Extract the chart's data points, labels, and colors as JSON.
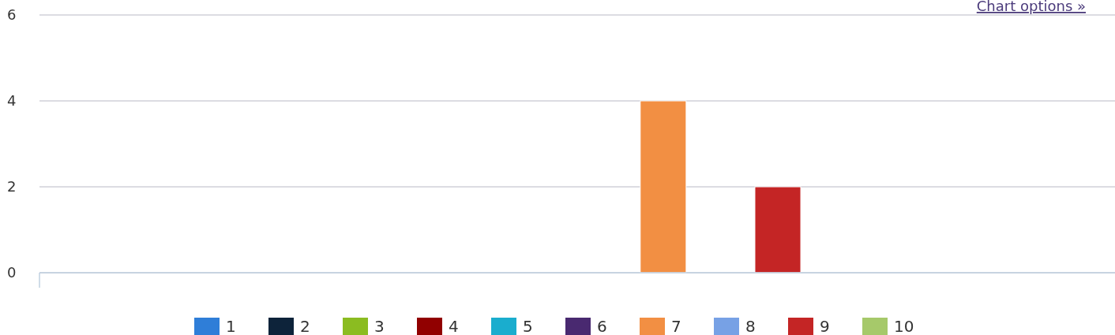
{
  "chart_data": {
    "type": "bar",
    "categories": [
      null
    ],
    "series": [
      {
        "name": "1",
        "color": "#2f7ed8",
        "values": [
          0
        ]
      },
      {
        "name": "2",
        "color": "#0d233a",
        "values": [
          0
        ]
      },
      {
        "name": "3",
        "color": "#8bbc21",
        "values": [
          0
        ]
      },
      {
        "name": "4",
        "color": "#910000",
        "values": [
          0
        ]
      },
      {
        "name": "5",
        "color": "#1aadce",
        "values": [
          0
        ]
      },
      {
        "name": "6",
        "color": "#492970",
        "values": [
          0
        ]
      },
      {
        "name": "7",
        "color": "#f28f43",
        "values": [
          4
        ]
      },
      {
        "name": "8",
        "color": "#77a1e5",
        "values": [
          0
        ]
      },
      {
        "name": "9",
        "color": "#c42525",
        "values": [
          2
        ]
      },
      {
        "name": "10",
        "color": "#a6c96a",
        "values": [
          0
        ]
      }
    ],
    "ylim": [
      0,
      6
    ],
    "yticks": [
      0,
      2,
      4,
      6
    ],
    "grid": "y",
    "legend": "bottom",
    "annotations": [
      "Chart options »"
    ]
  }
}
